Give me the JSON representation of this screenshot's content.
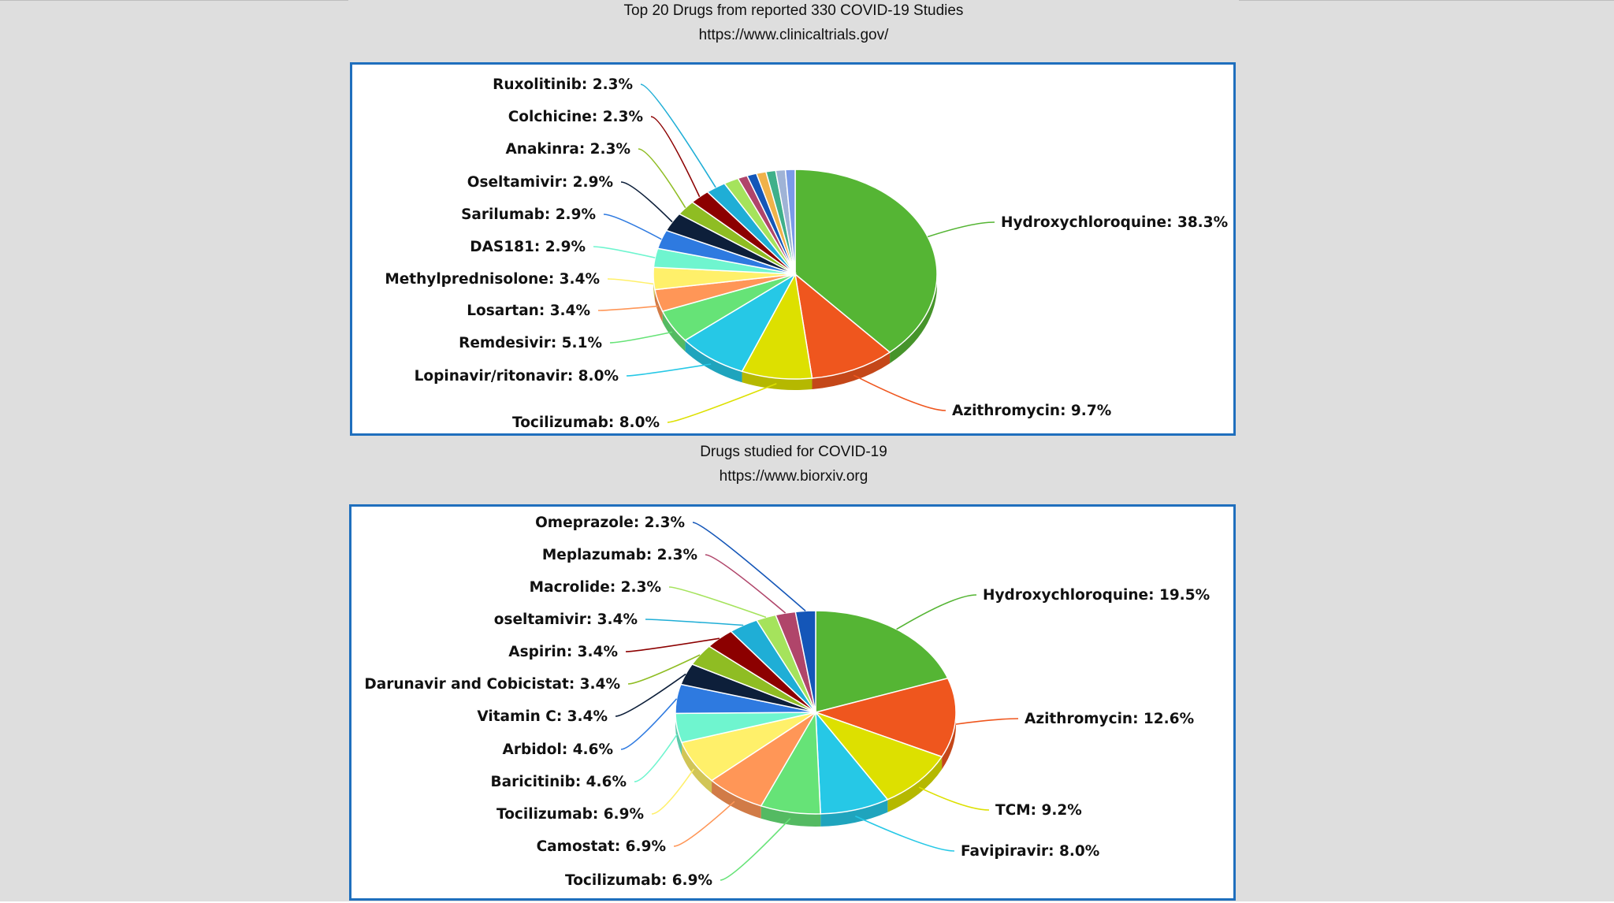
{
  "top_caption": {
    "line1": "Top 20 Drugs from reported 330 COVID-19 Studies",
    "line2": "https://www.clinicaltrials.gov/"
  },
  "bottom_caption": {
    "line1": "Drugs studied for COVID-19",
    "line2": "https://www.biorxiv.org"
  },
  "chart_data": [
    {
      "type": "pie",
      "style": "3d",
      "slices": [
        {
          "label": "Hydroxychloroquine: 38.3%",
          "value": 38.3,
          "color": "#55b534"
        },
        {
          "label": "Azithromycin: 9.7%",
          "value": 9.7,
          "color": "#ef561e"
        },
        {
          "label": "Tocilizumab: 8.0%",
          "value": 8.0,
          "color": "#dde000"
        },
        {
          "label": "Lopinavir/ritonavir: 8.0%",
          "value": 8.0,
          "color": "#26c8e6"
        },
        {
          "label": "Remdesivir: 5.1%",
          "value": 5.1,
          "color": "#66e377"
        },
        {
          "label": "Losartan: 3.4%",
          "value": 3.4,
          "color": "#ff9657"
        },
        {
          "label": "Methylprednisolone: 3.4%",
          "value": 3.4,
          "color": "#fff06a"
        },
        {
          "label": "DAS181: 2.9%",
          "value": 2.9,
          "color": "#6ff5cf"
        },
        {
          "label": "Sarilumab: 2.9%",
          "value": 2.9,
          "color": "#2e7ae0"
        },
        {
          "label": "Oseltamivir: 2.9%",
          "value": 2.9,
          "color": "#0d1f3a"
        },
        {
          "label": "Anakinra: 2.3%",
          "value": 2.3,
          "color": "#8fbd23"
        },
        {
          "label": "Colchicine: 2.3%",
          "value": 2.3,
          "color": "#8c0000"
        },
        {
          "label": "Ruxolitinib: 2.3%",
          "value": 2.3,
          "color": "#1faed6"
        },
        {
          "label": "",
          "value": 1.7,
          "color": "#a5e35c"
        },
        {
          "label": "",
          "value": 1.1,
          "color": "#b0456a"
        },
        {
          "label": "",
          "value": 1.1,
          "color": "#1456b8"
        },
        {
          "label": "",
          "value": 1.1,
          "color": "#f0b24a"
        },
        {
          "label": "",
          "value": 1.1,
          "color": "#3fb08a"
        },
        {
          "label": "",
          "value": 1.1,
          "color": "#9fb3d6"
        },
        {
          "label": "",
          "value": 1.1,
          "color": "#7a9ae8"
        }
      ]
    },
    {
      "type": "pie",
      "style": "3d",
      "slices": [
        {
          "label": "Hydroxychloroquine: 19.5%",
          "value": 19.5,
          "color": "#55b534"
        },
        {
          "label": "Azithromycin: 12.6%",
          "value": 12.6,
          "color": "#ef561e"
        },
        {
          "label": "TCM: 9.2%",
          "value": 9.2,
          "color": "#dde000"
        },
        {
          "label": "Favipiravir: 8.0%",
          "value": 8.0,
          "color": "#26c8e6"
        },
        {
          "label": "Tocilizumab: 6.9%",
          "value": 6.9,
          "color": "#66e377"
        },
        {
          "label": "Camostat: 6.9%",
          "value": 6.9,
          "color": "#ff9657"
        },
        {
          "label": "Tocilizumab: 6.9%",
          "value": 6.9,
          "color": "#fff06a"
        },
        {
          "label": "Baricitinib: 4.6%",
          "value": 4.6,
          "color": "#6ff5cf"
        },
        {
          "label": "Arbidol: 4.6%",
          "value": 4.6,
          "color": "#2e7ae0"
        },
        {
          "label": "Vitamin C: 3.4%",
          "value": 3.4,
          "color": "#0d1f3a"
        },
        {
          "label": "Darunavir and Cobicistat: 3.4%",
          "value": 3.4,
          "color": "#8fbd23"
        },
        {
          "label": "Aspirin: 3.4%",
          "value": 3.4,
          "color": "#8c0000"
        },
        {
          "label": "oseltamivir: 3.4%",
          "value": 3.4,
          "color": "#1faed6"
        },
        {
          "label": "Macrolide: 2.3%",
          "value": 2.3,
          "color": "#a5e35c"
        },
        {
          "label": "Meplazumab: 2.3%",
          "value": 2.3,
          "color": "#b0456a"
        },
        {
          "label": "Omeprazole: 2.3%",
          "value": 2.3,
          "color": "#1456b8"
        }
      ]
    }
  ]
}
